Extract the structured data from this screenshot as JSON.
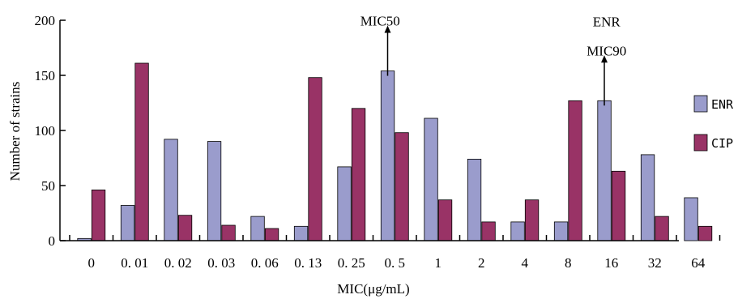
{
  "chart_data": {
    "type": "bar",
    "title": "",
    "xlabel": "MIC(μg/mL)",
    "ylabel": "Number of strains",
    "ylim": [
      0,
      200
    ],
    "yticks": [
      0,
      50,
      100,
      150,
      200
    ],
    "grid": false,
    "legend_position": "right",
    "categories": [
      "0",
      "0. 01",
      "0. 02",
      "0. 03",
      "0. 06",
      "0. 13",
      "0. 25",
      "0. 5",
      "1",
      "2",
      "4",
      "8",
      "16",
      "32",
      "64"
    ],
    "series": [
      {
        "name": "ENR",
        "color": "#9a9ccc",
        "values": [
          2,
          32,
          92,
          90,
          22,
          13,
          67,
          154,
          111,
          74,
          17,
          17,
          127,
          78,
          39
        ]
      },
      {
        "name": "CIP",
        "color": "#993366",
        "values": [
          46,
          161,
          23,
          14,
          11,
          148,
          120,
          98,
          37,
          17,
          37,
          127,
          63,
          22,
          13
        ]
      }
    ],
    "annotations": [
      {
        "category": "0. 5",
        "lines": [
          "ENR",
          "MIC50"
        ]
      },
      {
        "category": "16",
        "lines": [
          "ENR",
          "MIC90"
        ]
      }
    ]
  }
}
